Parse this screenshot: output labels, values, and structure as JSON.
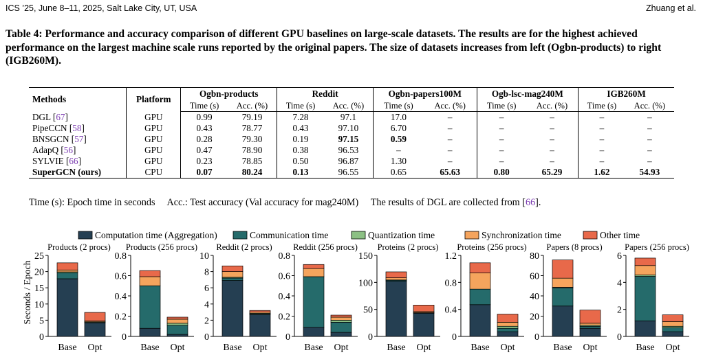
{
  "header": {
    "left": "ICS ’25, June 8–11, 2025, Salt Lake City, UT, USA",
    "right": "Zhuang et al."
  },
  "caption": "Table 4: Performance and accuracy comparison of different GPU baselines on large-scale datasets. The results are for the highest achieved performance on the largest machine scale runs reported by the original papers. The size of datasets increases from left (Ogbn-products) to right (IGB260M).",
  "table": {
    "col_methods": "Methods",
    "col_platform": "Platform",
    "datasets": [
      "Ogbn-products",
      "Reddit",
      "Ogbn-papers100M",
      "Ogb-lsc-mag240M",
      "IGB260M"
    ],
    "sub_time": "Time (s)",
    "sub_acc": "Acc. (%)",
    "rows": [
      {
        "name": "DGL",
        "cite": "67",
        "platform": "GPU",
        "cells": [
          "0.99",
          "79.19",
          "7.28",
          "97.1",
          "17.0",
          "–",
          "–",
          "–",
          "–",
          "–"
        ]
      },
      {
        "name": "PipeCCN",
        "cite": "58",
        "platform": "GPU",
        "cells": [
          "0.43",
          "78.77",
          "0.43",
          "97.10",
          "6.70",
          "–",
          "–",
          "–",
          "–",
          "–"
        ]
      },
      {
        "name": "BNSGCN",
        "cite": "57",
        "platform": "GPU",
        "cells": [
          "0.28",
          "79.30",
          "0.19",
          "97.15",
          "0.59",
          "–",
          "–",
          "–",
          "–",
          "–"
        ]
      },
      {
        "name": "AdapQ",
        "cite": "56",
        "platform": "GPU",
        "cells": [
          "0.47",
          "78.90",
          "0.38",
          "96.53",
          "–",
          "–",
          "–",
          "–",
          "–",
          "–"
        ]
      },
      {
        "name": "SYLVIE",
        "cite": "66",
        "platform": "GPU",
        "cells": [
          "0.23",
          "78.85",
          "0.50",
          "96.87",
          "1.30",
          "–",
          "–",
          "–",
          "–",
          "–"
        ]
      },
      {
        "name": "SuperGCN (ours)",
        "cite": "",
        "platform": "CPU",
        "cells": [
          "0.07",
          "80.24",
          "0.13",
          "96.55",
          "0.65",
          "65.63",
          "0.80",
          "65.29",
          "1.62",
          "54.93"
        ]
      }
    ]
  },
  "note": {
    "part1": "Time (s): Epoch time in seconds",
    "part2": "Acc.: Test accuracy (Val accuracy for mag240M)",
    "part3": "The results of DGL are collected from [",
    "cite": "66",
    "part4": "]."
  },
  "chart_data": {
    "type": "bar",
    "stacked": true,
    "ylabel": "Seconds / Epoch",
    "legend": [
      {
        "name": "Computation time (Aggregation)",
        "color": "#253f52"
      },
      {
        "name": "Communication time",
        "color": "#256b6b"
      },
      {
        "name": "Quantization time",
        "color": "#8cc084"
      },
      {
        "name": "Synchronization time",
        "color": "#f5a45d"
      },
      {
        "name": "Other time",
        "color": "#e8694a"
      }
    ],
    "panels": [
      {
        "title": "Products (2 procs)",
        "ylim": [
          0,
          25
        ],
        "yticks": [
          "0",
          "5",
          "10",
          "15",
          "20",
          "25"
        ],
        "categories": [
          "Base",
          "Opt"
        ],
        "bars": [
          [
            17.8,
            1.8,
            0.3,
            0.6,
            2.2
          ],
          [
            4.2,
            0.1,
            0.2,
            0.3,
            2.6
          ]
        ]
      },
      {
        "title": "Products (256 procs)",
        "ylim": [
          0,
          0.8
        ],
        "yticks": [
          "0",
          "0.2",
          "0.4",
          "0.6",
          "0.8"
        ],
        "categories": [
          "Base",
          "Opt"
        ],
        "bars": [
          [
            0.08,
            0.42,
            0.0,
            0.09,
            0.06
          ],
          [
            0.02,
            0.09,
            0.02,
            0.04,
            0.02
          ]
        ]
      },
      {
        "title": "Reddit (2 procs)",
        "ylim": [
          0,
          10
        ],
        "yticks": [
          "0",
          "2",
          "4",
          "6",
          "8",
          "10"
        ],
        "categories": [
          "Base",
          "Opt"
        ],
        "bars": [
          [
            6.9,
            0.3,
            0.1,
            0.7,
            0.7
          ],
          [
            2.7,
            0.05,
            0.1,
            0.15,
            0.2
          ]
        ]
      },
      {
        "title": "Reddit (256 procs)",
        "ylim": [
          0,
          0.8
        ],
        "yticks": [
          "0",
          "0.2",
          "0.4",
          "0.6",
          "0.8"
        ],
        "categories": [
          "Base",
          "Opt"
        ],
        "bars": [
          [
            0.09,
            0.5,
            0.0,
            0.08,
            0.04
          ],
          [
            0.04,
            0.1,
            0.02,
            0.03,
            0.02
          ]
        ]
      },
      {
        "title": "Proteins (2 procs)",
        "ylim": [
          0,
          150
        ],
        "yticks": [
          "0",
          "50",
          "100",
          "150"
        ],
        "categories": [
          "Base",
          "Opt"
        ],
        "bars": [
          [
            102,
            2,
            0.5,
            4,
            11
          ],
          [
            43,
            0.5,
            0.5,
            2,
            12
          ]
        ]
      },
      {
        "title": "Proteins (256 procs)",
        "ylim": [
          0,
          1.2
        ],
        "yticks": [
          "0",
          "0.4",
          "0.8",
          "1.2"
        ],
        "categories": [
          "Base",
          "Opt"
        ],
        "bars": [
          [
            0.47,
            0.23,
            0.0,
            0.24,
            0.15
          ],
          [
            0.07,
            0.05,
            0.03,
            0.06,
            0.12
          ]
        ]
      },
      {
        "title": "Papers (8 procs)",
        "ylim": [
          0,
          80
        ],
        "yticks": [
          "0",
          "20",
          "40",
          "60",
          "80"
        ],
        "categories": [
          "Base",
          "Opt"
        ],
        "bars": [
          [
            30,
            18,
            0.5,
            9,
            18
          ],
          [
            8,
            2,
            1,
            2,
            13
          ]
        ]
      },
      {
        "title": "Papers (256 procs)",
        "ylim": [
          0,
          6
        ],
        "yticks": [
          "0",
          "2",
          "4",
          "6"
        ],
        "categories": [
          "Base",
          "Opt"
        ],
        "bars": [
          [
            1.15,
            3.3,
            0.1,
            0.7,
            0.55
          ],
          [
            0.35,
            0.3,
            0.1,
            0.35,
            0.5
          ]
        ]
      }
    ]
  }
}
